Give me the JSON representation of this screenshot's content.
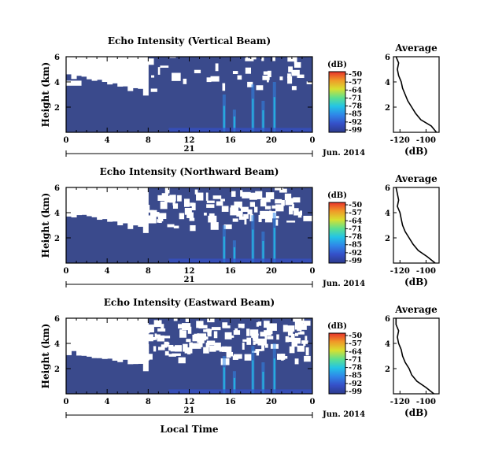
{
  "figure": {
    "date_label": "Jun. 2014",
    "day_label": "21",
    "xlabel": "Local Time",
    "profile_xlabel": "(dB)",
    "colorbar_label": "(dB)"
  },
  "colors": {
    "background_echo": "#3a4a8c",
    "no_data": "#ffffff",
    "colorscale": [
      "#2c3a8c",
      "#3550c8",
      "#2f86e8",
      "#23c4e6",
      "#5ee08e",
      "#d8e030",
      "#f09a28",
      "#e8322a"
    ]
  },
  "chart_data": [
    {
      "type": "heatmap",
      "title": "Echo Intensity (Vertical Beam)",
      "ylabel": "Height (km)",
      "x_ticks": [
        "0",
        "4",
        "8",
        "12",
        "16",
        "20",
        "0"
      ],
      "y_ticks": [
        "6",
        "4",
        "2"
      ],
      "xlim": [
        0,
        24
      ],
      "ylim": [
        0,
        6
      ],
      "colorbar_ticks": [
        "-50",
        "-57",
        "-64",
        "-71",
        "-78",
        "-85",
        "-92",
        "-99"
      ],
      "clim": [
        -99,
        -50
      ],
      "profile": {
        "title": "Average",
        "x_ticks": [
          "-120",
          "-100"
        ],
        "y_ticks": [
          "6",
          "4",
          "2"
        ],
        "xlim": [
          -125,
          -90
        ],
        "height_km": [
          0.0,
          0.5,
          1.0,
          1.5,
          2.0,
          2.5,
          3.0,
          3.5,
          4.0,
          4.5,
          5.0,
          5.5,
          6.0
        ],
        "value_db": [
          -92,
          -96,
          -104,
          -108,
          -111,
          -114,
          -116,
          -118,
          -119,
          -121,
          -122,
          -121,
          -123
        ]
      }
    },
    {
      "type": "heatmap",
      "title": "Echo Intensity (Northward Beam)",
      "ylabel": "Height (km)",
      "x_ticks": [
        "0",
        "4",
        "8",
        "12",
        "16",
        "20",
        "0"
      ],
      "y_ticks": [
        "6",
        "4",
        "2"
      ],
      "xlim": [
        0,
        24
      ],
      "ylim": [
        0,
        6
      ],
      "colorbar_ticks": [
        "-50",
        "-57",
        "-64",
        "-71",
        "-78",
        "-85",
        "-92",
        "-99"
      ],
      "clim": [
        -99,
        -50
      ],
      "profile": {
        "title": "Average",
        "x_ticks": [
          "-120",
          "-100"
        ],
        "y_ticks": [
          "6",
          "4",
          "2"
        ],
        "xlim": [
          -125,
          -90
        ],
        "height_km": [
          0.0,
          0.5,
          1.0,
          1.5,
          2.0,
          2.5,
          3.0,
          3.5,
          4.0,
          4.5,
          5.0,
          5.5,
          6.0
        ],
        "value_db": [
          -93,
          -99,
          -106,
          -110,
          -113,
          -116,
          -118,
          -119,
          -120,
          -122,
          -121,
          -122,
          -123
        ]
      }
    },
    {
      "type": "heatmap",
      "title": "Echo Intensity (Eastward Beam)",
      "ylabel": "Height (km)",
      "x_ticks": [
        "0",
        "4",
        "8",
        "12",
        "16",
        "20",
        "0"
      ],
      "y_ticks": [
        "6",
        "4",
        "2"
      ],
      "xlim": [
        0,
        24
      ],
      "ylim": [
        0,
        6
      ],
      "colorbar_ticks": [
        "-50",
        "-57",
        "-64",
        "-71",
        "-78",
        "-85",
        "-92",
        "-99"
      ],
      "clim": [
        -99,
        -50
      ],
      "profile": {
        "title": "Average",
        "x_ticks": [
          "-120",
          "-100"
        ],
        "y_ticks": [
          "6",
          "4",
          "2"
        ],
        "xlim": [
          -125,
          -90
        ],
        "height_km": [
          0.0,
          0.5,
          1.0,
          1.5,
          2.0,
          2.5,
          3.0,
          3.5,
          4.0,
          4.5,
          5.0,
          5.5,
          6.0
        ],
        "value_db": [
          -94,
          -100,
          -107,
          -111,
          -113,
          -116,
          -118,
          -119,
          -121,
          -122,
          -121,
          -123,
          -123
        ]
      }
    }
  ]
}
